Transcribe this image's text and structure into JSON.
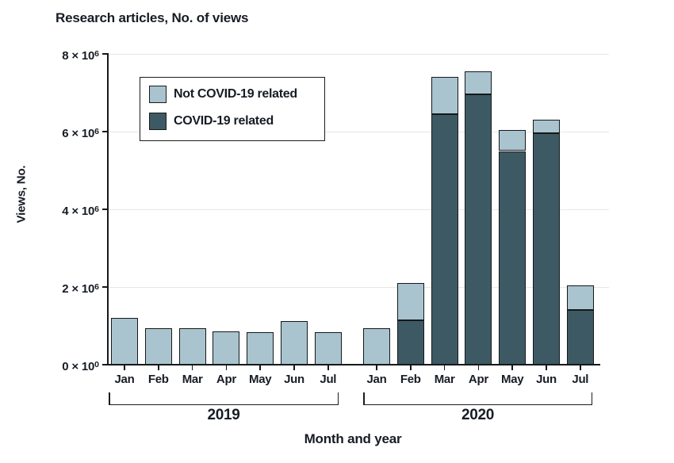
{
  "title": "Research articles, No. of views",
  "legend": {
    "items": [
      {
        "label": "Not COVID-19 related",
        "color": "#a9c4ce",
        "key": "not_covid"
      },
      {
        "label": "COVID-19 related",
        "color": "#3d5a64",
        "key": "covid"
      }
    ]
  },
  "colors": {
    "not_covid_fill": "#a9c4ce",
    "covid_fill": "#3d5a64",
    "bar_border": "#16181a",
    "axis": "#16181a",
    "gridline": "#e7e7e4",
    "text": "#171c25",
    "background": "#ffffff"
  },
  "chart_data": {
    "type": "bar",
    "stacked": true,
    "title": "Research articles, No. of views",
    "xlabel": "Month and year",
    "ylabel": "Views, No.",
    "ylim": [
      0,
      8000000
    ],
    "grid": "horizontal",
    "legend_position": "upper-left-inside",
    "yticks": [
      {
        "value": 0,
        "base": "0 × 10",
        "exp": "0"
      },
      {
        "value": 2000000,
        "base": "2 × 10",
        "exp": "6"
      },
      {
        "value": 4000000,
        "base": "4 × 10",
        "exp": "6"
      },
      {
        "value": 6000000,
        "base": "6 × 10",
        "exp": "6"
      },
      {
        "value": 8000000,
        "base": "8 × 10",
        "exp": "6"
      }
    ],
    "groups": [
      {
        "label": "2019",
        "categories": [
          "Jan",
          "Feb",
          "Mar",
          "Apr",
          "May",
          "Jun",
          "Jul"
        ],
        "series": [
          {
            "name": "COVID-19 related",
            "values": [
              0,
              0,
              0,
              0,
              0,
              0,
              0
            ]
          },
          {
            "name": "Not COVID-19 related",
            "values": [
              1200000,
              930000,
              930000,
              850000,
              830000,
              1120000,
              830000
            ]
          }
        ]
      },
      {
        "label": "2020",
        "categories": [
          "Jan",
          "Feb",
          "Mar",
          "Apr",
          "May",
          "Jun",
          "Jul"
        ],
        "series": [
          {
            "name": "COVID-19 related",
            "values": [
              0,
              1150000,
              6450000,
              6950000,
              5500000,
              5950000,
              1400000
            ]
          },
          {
            "name": "Not COVID-19 related",
            "values": [
              930000,
              950000,
              950000,
              600000,
              550000,
              350000,
              650000
            ]
          }
        ]
      }
    ]
  }
}
